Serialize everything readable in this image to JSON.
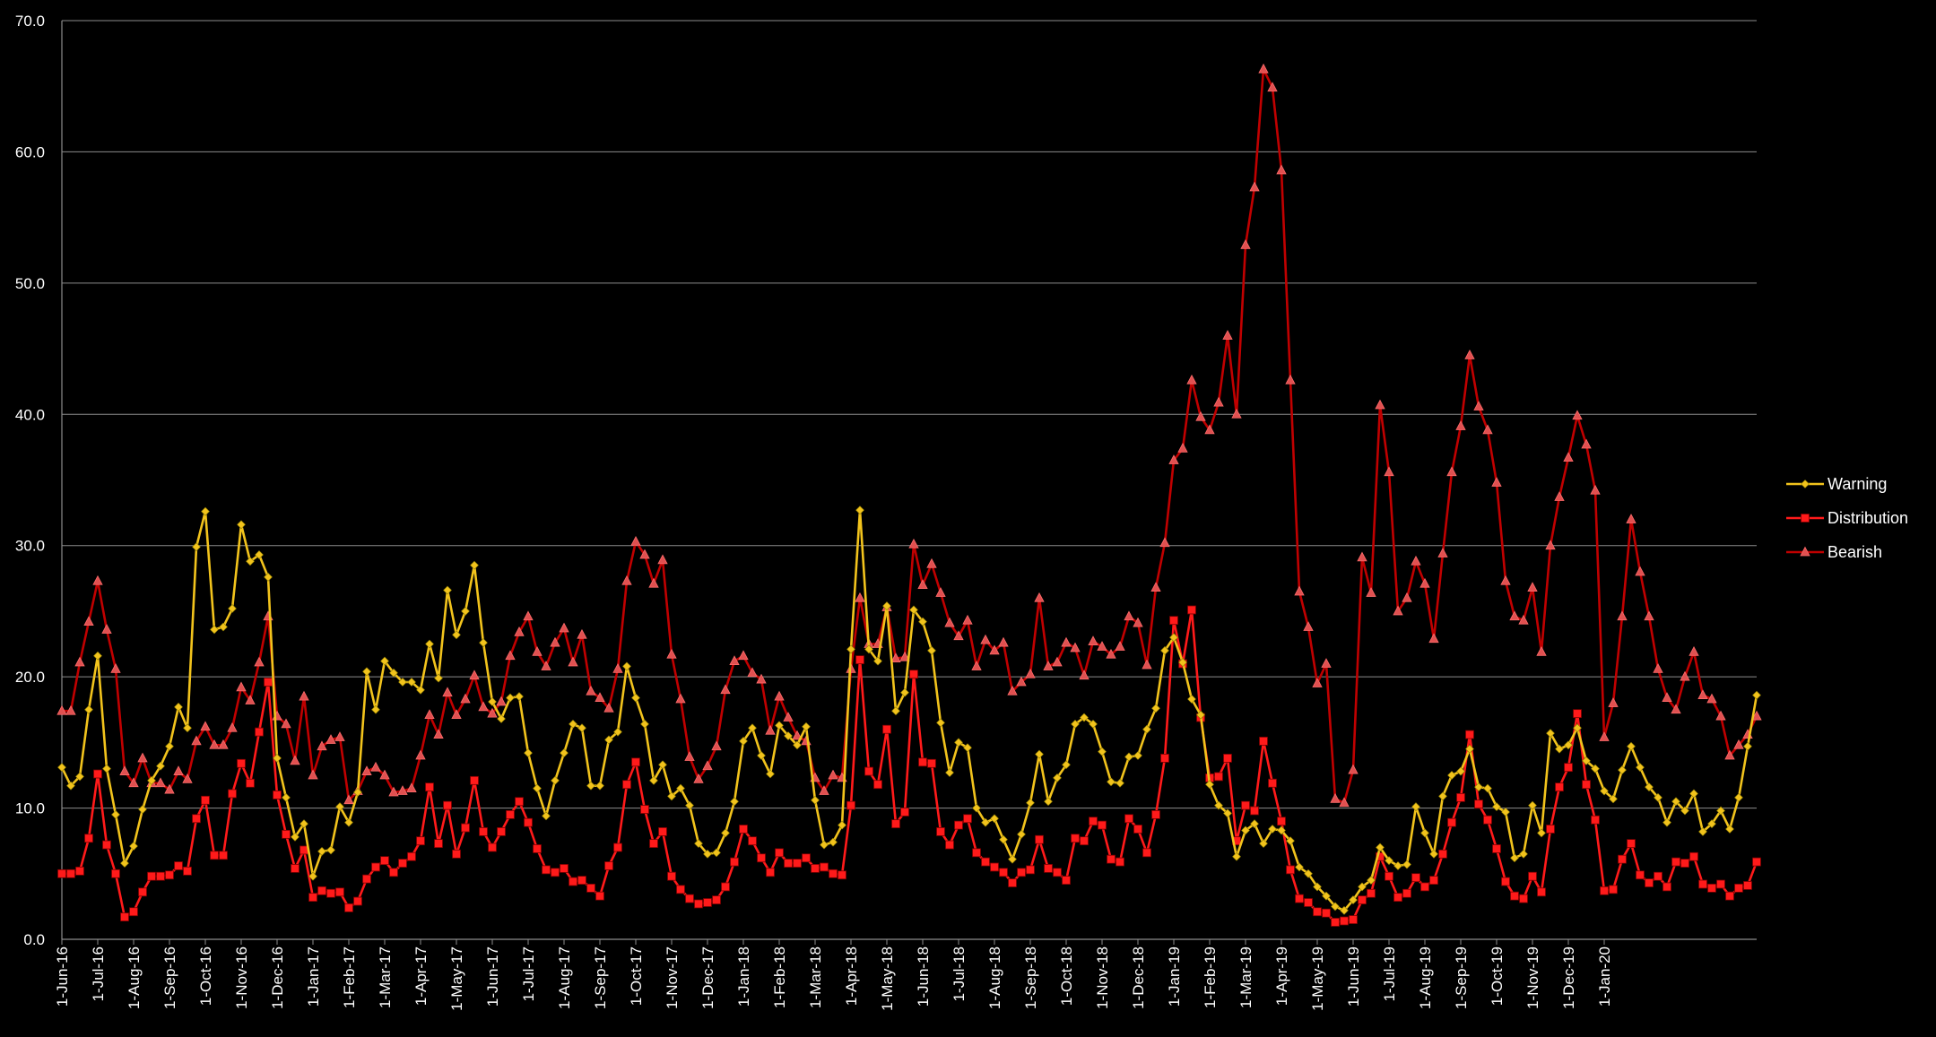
{
  "chart_data": {
    "type": "line",
    "title": "",
    "xlabel": "",
    "ylabel": "",
    "ylim": [
      0,
      70
    ],
    "yticks": [
      "0.0",
      "10.0",
      "20.0",
      "30.0",
      "40.0",
      "50.0",
      "60.0",
      "70.0"
    ],
    "ytick_values": [
      0,
      10,
      20,
      30,
      40,
      50,
      60,
      70
    ],
    "grid": "horizontal",
    "legend_position": "right",
    "background": "#000000",
    "x_tick_labels": [
      "1-Jun-16",
      "1-Jul-16",
      "1-Aug-16",
      "1-Sep-16",
      "1-Oct-16",
      "1-Nov-16",
      "1-Dec-16",
      "1-Jan-17",
      "1-Feb-17",
      "1-Mar-17",
      "1-Apr-17",
      "1-May-17",
      "1-Jun-17",
      "1-Jul-17",
      "1-Aug-17",
      "1-Sep-17",
      "1-Oct-17",
      "1-Nov-17",
      "1-Dec-17",
      "1-Jan-18",
      "1-Feb-18",
      "1-Mar-18",
      "1-Apr-18",
      "1-May-18",
      "1-Jun-18",
      "1-Jul-18",
      "1-Aug-18",
      "1-Sep-18",
      "1-Oct-18",
      "1-Nov-18",
      "1-Dec-18",
      "1-Jan-19",
      "1-Feb-19",
      "1-Mar-19",
      "1-Apr-19",
      "1-May-19",
      "1-Jun-19",
      "1-Jul-19",
      "1-Aug-19",
      "1-Sep-19",
      "1-Oct-19",
      "1-Nov-19",
      "1-Dec-19",
      "1-Jan-20"
    ],
    "x_tick_index": [
      0,
      4,
      8,
      12,
      16,
      20,
      24,
      28,
      32,
      36,
      40,
      44,
      48,
      52,
      56,
      60,
      64,
      68,
      72,
      76,
      80,
      84,
      88,
      92,
      96,
      100,
      104,
      108,
      112,
      116,
      120,
      124,
      128,
      132,
      136,
      140,
      144,
      148,
      152,
      156,
      160,
      164,
      168,
      172
    ],
    "series": [
      {
        "name": "Warning",
        "color": "#f2c31c",
        "marker": "diamond",
        "values": [
          13.1,
          11.7,
          12.4,
          17.5,
          21.6,
          13.0,
          9.5,
          5.8,
          7.1,
          9.9,
          12.1,
          13.2,
          14.7,
          17.7,
          16.1,
          29.9,
          32.6,
          23.6,
          23.8,
          25.2,
          31.6,
          28.8,
          29.3,
          27.6,
          13.8,
          10.8,
          7.8,
          8.8,
          4.8,
          6.7,
          6.8,
          10.1,
          8.9,
          11.2,
          20.4,
          17.5,
          21.2,
          20.3,
          19.6,
          19.6,
          19.0,
          22.5,
          19.9,
          26.6,
          23.2,
          25.0,
          28.5,
          22.6,
          18.1,
          16.8,
          18.4,
          18.5,
          14.2,
          11.5,
          9.4,
          12.1,
          14.2,
          16.4,
          16.1,
          11.7,
          11.7,
          15.2,
          15.8,
          20.8,
          18.4,
          16.4,
          12.1,
          13.3,
          10.9,
          11.5,
          10.2,
          7.3,
          6.5,
          6.6,
          8.1,
          10.5,
          15.1,
          16.1,
          14.0,
          12.6,
          16.3,
          15.5,
          14.8,
          16.2,
          10.6,
          7.2,
          7.4,
          8.7,
          22.1,
          32.7,
          22.1,
          21.2,
          25.4,
          17.4,
          18.8,
          25.1,
          24.2,
          22.0,
          16.5,
          12.7,
          15.0,
          14.6,
          10.0,
          8.9,
          9.2,
          7.6,
          6.1,
          8.0,
          10.4,
          14.1,
          10.5,
          12.3,
          13.3,
          16.4,
          16.9,
          16.4,
          14.3,
          12.0,
          11.9,
          13.9,
          14.0,
          16.0,
          17.6,
          22.0,
          23.0,
          21.1,
          18.3,
          17.1,
          11.8,
          10.2,
          9.6,
          6.3,
          8.3,
          8.8,
          7.3,
          8.4,
          8.3,
          7.5,
          5.5,
          5.0,
          4.0,
          3.3,
          2.5,
          2.2,
          3.0,
          4.0,
          4.5,
          7.0,
          6.0,
          5.6,
          5.7,
          10.1,
          8.1,
          6.5,
          10.9,
          12.5,
          12.8,
          14.5,
          11.6,
          11.5,
          10.1,
          9.7,
          6.2,
          6.5,
          10.2,
          8.1,
          15.7,
          14.5,
          14.8,
          16.1,
          13.6,
          13.0,
          11.3,
          10.7,
          12.9,
          14.7,
          13.1,
          11.6,
          10.8,
          8.9,
          10.5,
          9.8,
          11.1,
          8.2,
          8.8,
          9.8,
          8.4,
          10.8,
          14.7,
          18.6
        ]
      },
      {
        "name": "Distribution",
        "color": "#ff1a1a",
        "marker": "square",
        "values": [
          5.0,
          5.0,
          5.2,
          7.7,
          12.6,
          7.2,
          5.0,
          1.7,
          2.1,
          3.6,
          4.8,
          4.8,
          4.9,
          5.6,
          5.2,
          9.2,
          10.6,
          6.4,
          6.4,
          11.1,
          13.4,
          11.9,
          15.8,
          19.6,
          11.0,
          8.0,
          5.4,
          6.8,
          3.2,
          3.7,
          3.5,
          3.6,
          2.4,
          2.9,
          4.6,
          5.5,
          6.0,
          5.1,
          5.8,
          6.3,
          7.5,
          11.6,
          7.3,
          10.2,
          6.5,
          8.5,
          12.1,
          8.2,
          7.0,
          8.2,
          9.5,
          10.5,
          8.9,
          6.9,
          5.3,
          5.1,
          5.4,
          4.4,
          4.5,
          3.9,
          3.3,
          5.6,
          7.0,
          11.8,
          13.5,
          9.9,
          7.3,
          8.2,
          4.8,
          3.8,
          3.1,
          2.7,
          2.8,
          3.0,
          4.0,
          5.9,
          8.4,
          7.5,
          6.2,
          5.1,
          6.6,
          5.8,
          5.8,
          6.2,
          5.4,
          5.5,
          5.0,
          4.9,
          10.2,
          21.3,
          12.8,
          11.8,
          16.0,
          8.8,
          9.7,
          20.2,
          13.5,
          13.4,
          8.2,
          7.2,
          8.7,
          9.2,
          6.6,
          5.9,
          5.5,
          5.1,
          4.3,
          5.1,
          5.3,
          7.6,
          5.4,
          5.1,
          4.5,
          7.7,
          7.5,
          9.0,
          8.7,
          6.1,
          5.9,
          9.2,
          8.4,
          6.6,
          9.5,
          13.8,
          24.3,
          21.0,
          25.1,
          16.9,
          12.3,
          12.4,
          13.8,
          7.5,
          10.2,
          9.8,
          15.1,
          11.9,
          9.0,
          5.3,
          3.1,
          2.8,
          2.1,
          2.0,
          1.3,
          1.4,
          1.5,
          3.0,
          3.5,
          6.3,
          4.8,
          3.2,
          3.5,
          4.7,
          4.0,
          4.5,
          6.5,
          8.9,
          10.8,
          15.6,
          10.3,
          9.1,
          6.9,
          4.4,
          3.3,
          3.1,
          4.8,
          3.6,
          8.4,
          11.6,
          13.1,
          17.2,
          11.8,
          9.1,
          3.7,
          3.8,
          6.1,
          7.3,
          4.9,
          4.3,
          4.8,
          4.0,
          5.9,
          5.8,
          6.3,
          4.2,
          3.9,
          4.2,
          3.3,
          3.9,
          4.1,
          5.9
        ]
      },
      {
        "name": "Bearish",
        "color": "#c00000",
        "marker": "triangle",
        "values": [
          17.4,
          17.4,
          21.1,
          24.2,
          27.3,
          23.6,
          20.6,
          12.8,
          11.9,
          13.8,
          11.9,
          11.9,
          11.4,
          12.8,
          12.2,
          15.1,
          16.2,
          14.8,
          14.8,
          16.1,
          19.2,
          18.2,
          21.1,
          24.6,
          17.0,
          16.4,
          13.6,
          18.5,
          12.5,
          14.7,
          15.2,
          15.4,
          10.6,
          11.3,
          12.8,
          13.1,
          12.5,
          11.2,
          11.3,
          11.5,
          14.0,
          17.1,
          15.6,
          18.8,
          17.1,
          18.3,
          20.1,
          17.7,
          17.2,
          18.1,
          21.6,
          23.4,
          24.6,
          21.9,
          20.8,
          22.6,
          23.7,
          21.1,
          23.2,
          18.9,
          18.4,
          17.6,
          20.6,
          27.3,
          30.3,
          29.3,
          27.1,
          28.9,
          21.7,
          18.3,
          13.9,
          12.2,
          13.2,
          14.7,
          19.0,
          21.2,
          21.6,
          20.3,
          19.8,
          15.9,
          18.5,
          16.9,
          15.5,
          15.1,
          12.3,
          11.3,
          12.5,
          12.3,
          20.6,
          26.0,
          22.5,
          22.5,
          25.3,
          21.4,
          21.5,
          30.1,
          27.0,
          28.6,
          26.4,
          24.1,
          23.1,
          24.3,
          20.8,
          22.8,
          22.0,
          22.6,
          18.9,
          19.6,
          20.2,
          26.0,
          20.8,
          21.1,
          22.6,
          22.2,
          20.1,
          22.7,
          22.3,
          21.7,
          22.3,
          24.6,
          24.1,
          20.9,
          26.8,
          30.2,
          36.5,
          37.4,
          42.6,
          39.8,
          38.8,
          40.9,
          46.0,
          40.0,
          52.9,
          57.3,
          66.3,
          64.9,
          58.6,
          42.6,
          26.5,
          23.8,
          19.5,
          21.0,
          10.7,
          10.4,
          12.9,
          29.1,
          26.4,
          40.7,
          35.6,
          25.0,
          26.0,
          28.8,
          27.1,
          22.9,
          29.4,
          35.6,
          39.1,
          44.5,
          40.6,
          38.8,
          34.8,
          27.3,
          24.6,
          24.3,
          26.8,
          21.9,
          30.0,
          33.7,
          36.7,
          39.9,
          37.7,
          34.2,
          15.4,
          18.0,
          24.6,
          32.0,
          28.0,
          24.6,
          20.6,
          18.4,
          17.5,
          20.0,
          21.9,
          18.6,
          18.3,
          17.0,
          14.0,
          14.8,
          15.6,
          17.0
        ]
      }
    ]
  }
}
